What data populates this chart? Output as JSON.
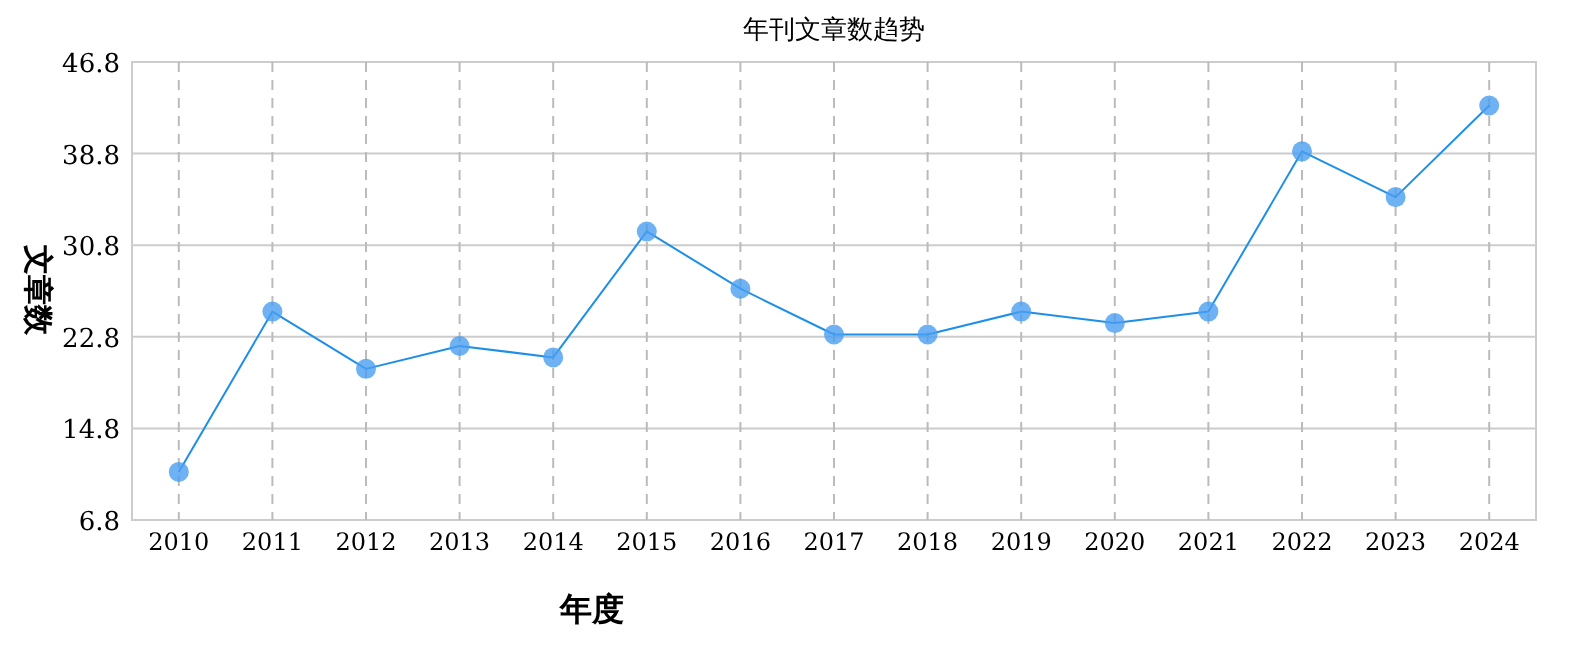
{
  "chart_data": {
    "type": "line",
    "title": "年刊文章数趋势",
    "xlabel": "年度",
    "ylabel": "文章数",
    "categories": [
      "2010",
      "2011",
      "2012",
      "2013",
      "2014",
      "2015",
      "2016",
      "2017",
      "2018",
      "2019",
      "2020",
      "2021",
      "2022",
      "2023",
      "2024"
    ],
    "series": [
      {
        "color": "#1e8fe8",
        "values": [
          11,
          25,
          20,
          22,
          21,
          32,
          27,
          23,
          23,
          25,
          24,
          25,
          39,
          35,
          43
        ]
      }
    ],
    "ylim": [
      6.8,
      46.8
    ],
    "yticks": [
      6.8,
      14.8,
      22.8,
      30.8,
      38.8,
      46.8
    ],
    "grid": true,
    "marker": "circle"
  }
}
